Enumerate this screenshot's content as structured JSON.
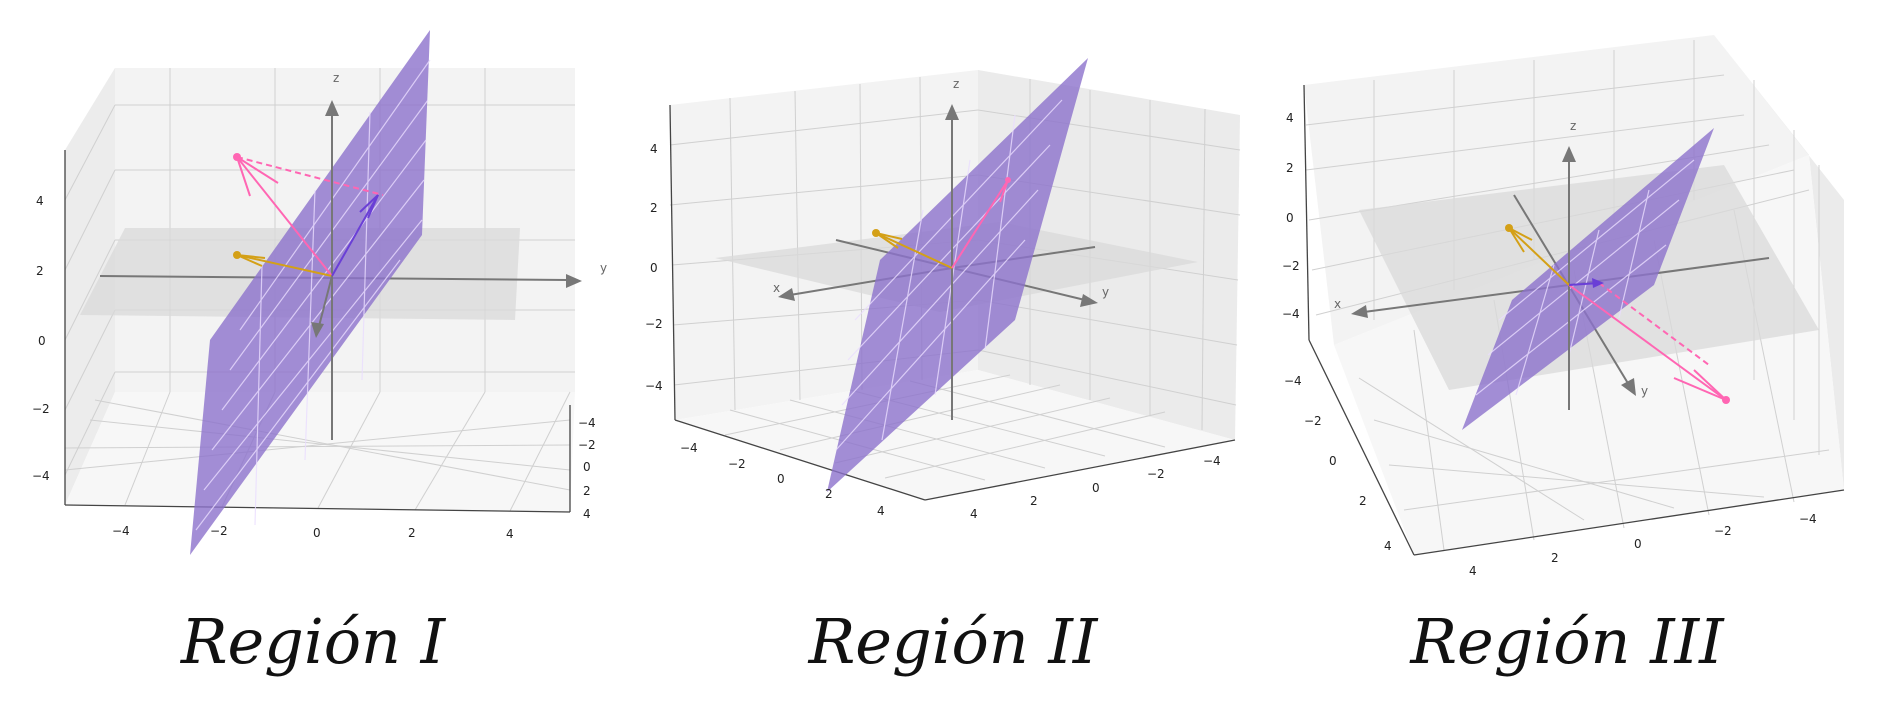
{
  "panels": [
    {
      "caption": "Región I",
      "axis_labels": {
        "x": "",
        "y": "y",
        "z": "z"
      },
      "z_ticks": [
        "4",
        "2",
        "0",
        "−2",
        "−4"
      ],
      "bottom_ticks": [
        "−4",
        "−2",
        "0",
        "2",
        "4"
      ],
      "side_ticks": [
        "−4",
        "−2",
        "0",
        "2",
        "4"
      ]
    },
    {
      "caption": "Región II",
      "axis_labels": {
        "x": "x",
        "y": "y",
        "z": "z"
      },
      "z_ticks": [
        "4",
        "2",
        "0",
        "−2",
        "−4"
      ],
      "bottom_ticks": [
        "−4",
        "−2",
        "0",
        "2",
        "4"
      ],
      "side_ticks": [
        "4",
        "2",
        "0",
        "−2",
        "−4"
      ]
    },
    {
      "caption": "Región III",
      "axis_labels": {
        "x": "x",
        "y": "y",
        "z": "z"
      },
      "z_ticks": [
        "4",
        "2",
        "0",
        "−2",
        "−4"
      ],
      "bottom_ticks": [
        "−4",
        "−2",
        "0",
        "2",
        "4"
      ],
      "side_ticks": [
        "4",
        "2",
        "0",
        "−2",
        "−4"
      ]
    }
  ],
  "colors": {
    "plane": "#8c72cc",
    "pink": "#ff66b3",
    "orange": "#d4a017",
    "purple": "#6a3fd6",
    "axis": "#777777",
    "grid": "#cccccc"
  }
}
